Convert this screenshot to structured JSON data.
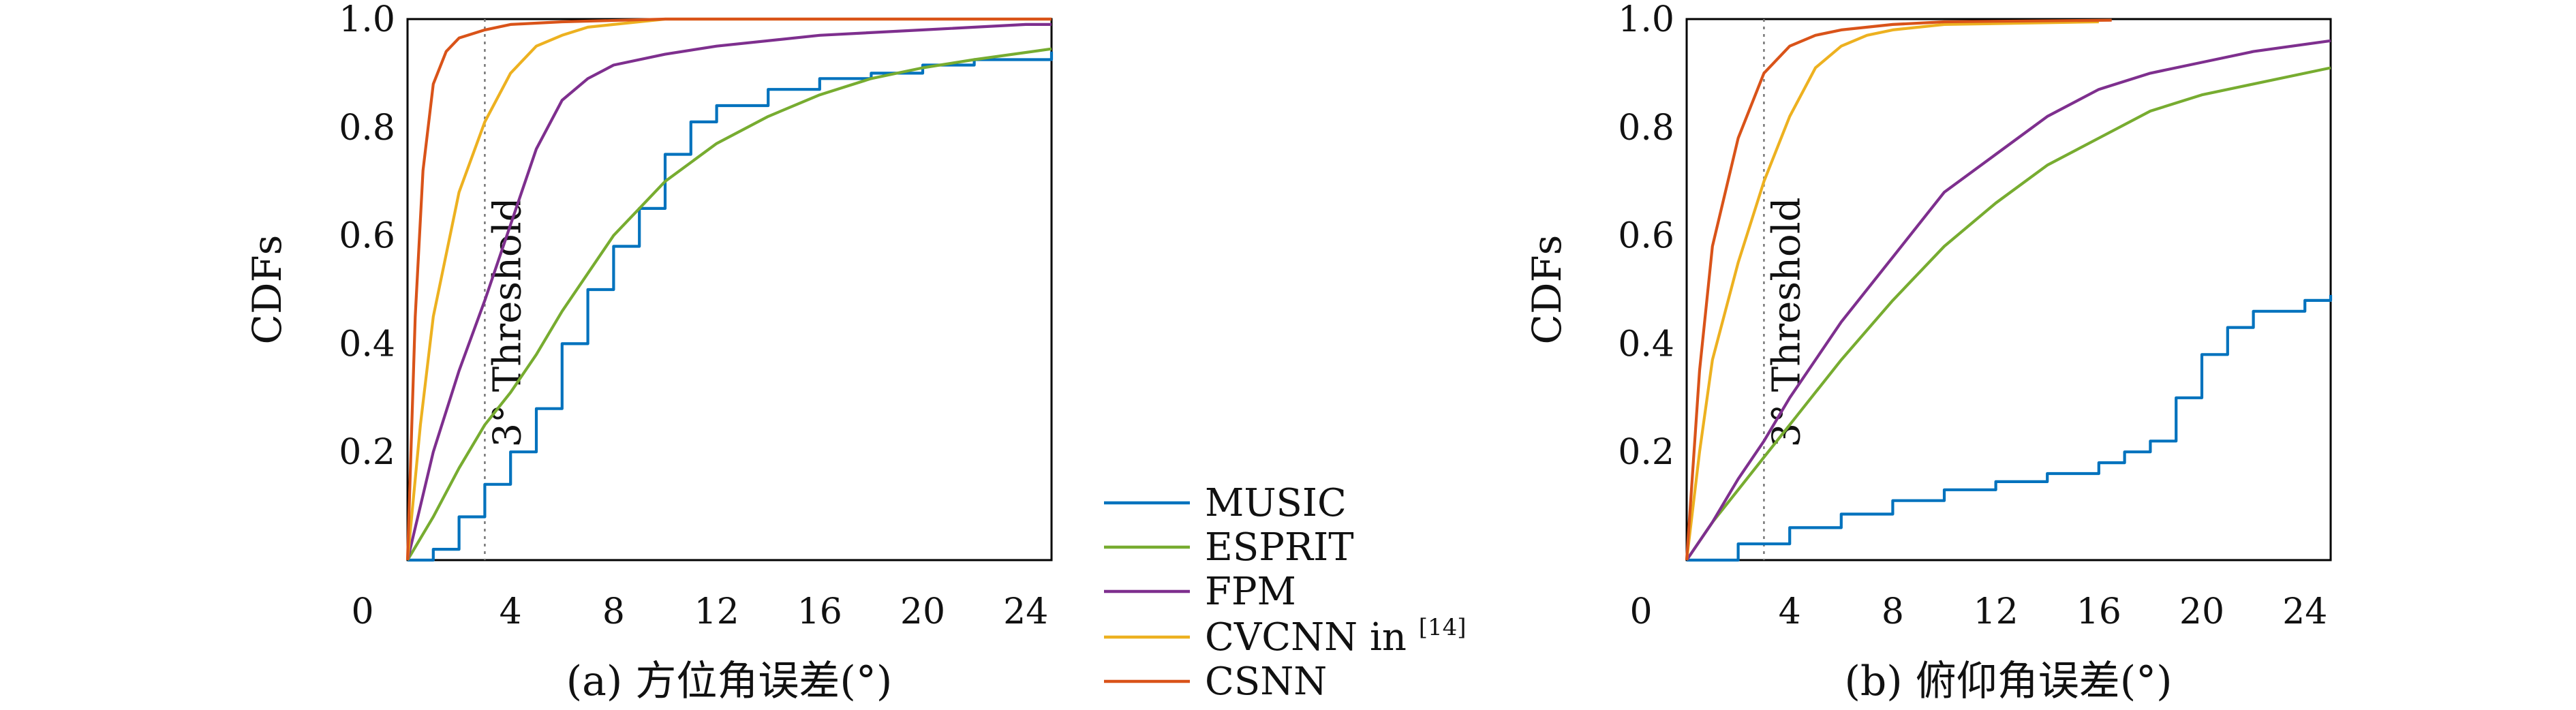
{
  "chart_data": [
    {
      "type": "line",
      "panel": "a",
      "title": "(a) 方位角误差(°)",
      "xlabel": "",
      "ylabel": "CDFs",
      "xlim": [
        0,
        25
      ],
      "ylim": [
        0,
        1
      ],
      "x_ticks": [
        "4",
        "8",
        "12",
        "16",
        "20",
        "24"
      ],
      "y_ticks": [
        "0.2",
        "0.4",
        "0.6",
        "0.8",
        "1.0"
      ],
      "origin_label": "0",
      "threshold": {
        "x": 3,
        "label": "3° Threshold"
      },
      "series": [
        {
          "name": "MUSIC",
          "color": "#0072BD",
          "stepped": true,
          "points": [
            [
              0,
              0
            ],
            [
              1,
              0.02
            ],
            [
              2,
              0.08
            ],
            [
              3,
              0.14
            ],
            [
              4,
              0.2
            ],
            [
              5,
              0.28
            ],
            [
              6,
              0.4
            ],
            [
              7,
              0.5
            ],
            [
              8,
              0.58
            ],
            [
              9,
              0.65
            ],
            [
              10,
              0.75
            ],
            [
              11,
              0.81
            ],
            [
              12,
              0.84
            ],
            [
              14,
              0.87
            ],
            [
              16,
              0.89
            ],
            [
              18,
              0.9
            ],
            [
              20,
              0.915
            ],
            [
              22,
              0.925
            ],
            [
              25,
              0.94
            ]
          ]
        },
        {
          "name": "ESPRIT",
          "color": "#77AC30",
          "stepped": false,
          "points": [
            [
              0,
              0
            ],
            [
              1,
              0.08
            ],
            [
              2,
              0.17
            ],
            [
              3,
              0.25
            ],
            [
              4,
              0.31
            ],
            [
              5,
              0.38
            ],
            [
              6,
              0.46
            ],
            [
              7,
              0.53
            ],
            [
              8,
              0.6
            ],
            [
              9,
              0.65
            ],
            [
              10,
              0.7
            ],
            [
              12,
              0.77
            ],
            [
              14,
              0.82
            ],
            [
              16,
              0.86
            ],
            [
              18,
              0.89
            ],
            [
              20,
              0.91
            ],
            [
              22,
              0.925
            ],
            [
              25,
              0.945
            ]
          ]
        },
        {
          "name": "FPM",
          "color": "#7E2F8E",
          "stepped": false,
          "points": [
            [
              0,
              0
            ],
            [
              1,
              0.2
            ],
            [
              2,
              0.35
            ],
            [
              3,
              0.48
            ],
            [
              4,
              0.62
            ],
            [
              5,
              0.76
            ],
            [
              6,
              0.85
            ],
            [
              7,
              0.89
            ],
            [
              8,
              0.915
            ],
            [
              10,
              0.935
            ],
            [
              12,
              0.95
            ],
            [
              16,
              0.97
            ],
            [
              20,
              0.98
            ],
            [
              24,
              0.99
            ],
            [
              25,
              0.99
            ]
          ]
        },
        {
          "name": "CVCNN in[14]",
          "color": "#EDB120",
          "stepped": false,
          "points": [
            [
              0,
              0
            ],
            [
              0.5,
              0.25
            ],
            [
              1,
              0.45
            ],
            [
              2,
              0.68
            ],
            [
              3,
              0.81
            ],
            [
              4,
              0.9
            ],
            [
              5,
              0.95
            ],
            [
              6,
              0.97
            ],
            [
              7,
              0.985
            ],
            [
              8,
              0.99
            ],
            [
              10,
              1.0
            ],
            [
              25,
              1.0
            ]
          ]
        },
        {
          "name": "CSNN",
          "color": "#D95319",
          "stepped": false,
          "points": [
            [
              0,
              0
            ],
            [
              0.3,
              0.45
            ],
            [
              0.6,
              0.72
            ],
            [
              1,
              0.88
            ],
            [
              1.5,
              0.94
            ],
            [
              2,
              0.965
            ],
            [
              3,
              0.98
            ],
            [
              4,
              0.99
            ],
            [
              6,
              0.995
            ],
            [
              10,
              1.0
            ],
            [
              25,
              1.0
            ]
          ]
        }
      ]
    },
    {
      "type": "line",
      "panel": "b",
      "title": "(b) 俯仰角误差(°)",
      "xlabel": "",
      "ylabel": "CDFs",
      "xlim": [
        0,
        25
      ],
      "ylim": [
        0,
        1
      ],
      "x_ticks": [
        "4",
        "8",
        "12",
        "16",
        "20",
        "24"
      ],
      "y_ticks": [
        "0.2",
        "0.4",
        "0.6",
        "0.8",
        "1.0"
      ],
      "origin_label": "0",
      "threshold": {
        "x": 3,
        "label": "3° Threshold"
      },
      "series": [
        {
          "name": "MUSIC",
          "color": "#0072BD",
          "stepped": true,
          "points": [
            [
              0,
              0
            ],
            [
              2,
              0.03
            ],
            [
              4,
              0.06
            ],
            [
              6,
              0.085
            ],
            [
              8,
              0.11
            ],
            [
              10,
              0.13
            ],
            [
              12,
              0.145
            ],
            [
              14,
              0.16
            ],
            [
              16,
              0.18
            ],
            [
              17,
              0.2
            ],
            [
              18,
              0.22
            ],
            [
              19,
              0.3
            ],
            [
              20,
              0.38
            ],
            [
              21,
              0.43
            ],
            [
              22,
              0.46
            ],
            [
              24,
              0.48
            ],
            [
              25,
              0.49
            ]
          ]
        },
        {
          "name": "ESPRIT",
          "color": "#77AC30",
          "stepped": false,
          "points": [
            [
              0,
              0
            ],
            [
              1,
              0.07
            ],
            [
              2,
              0.13
            ],
            [
              3,
              0.19
            ],
            [
              4,
              0.25
            ],
            [
              6,
              0.37
            ],
            [
              8,
              0.48
            ],
            [
              10,
              0.58
            ],
            [
              12,
              0.66
            ],
            [
              14,
              0.73
            ],
            [
              16,
              0.78
            ],
            [
              18,
              0.83
            ],
            [
              20,
              0.86
            ],
            [
              22,
              0.88
            ],
            [
              25,
              0.91
            ]
          ]
        },
        {
          "name": "FPM",
          "color": "#7E2F8E",
          "stepped": false,
          "points": [
            [
              0,
              0
            ],
            [
              1,
              0.07
            ],
            [
              2,
              0.15
            ],
            [
              3,
              0.22
            ],
            [
              4,
              0.3
            ],
            [
              6,
              0.44
            ],
            [
              8,
              0.56
            ],
            [
              10,
              0.68
            ],
            [
              12,
              0.75
            ],
            [
              14,
              0.82
            ],
            [
              16,
              0.87
            ],
            [
              18,
              0.9
            ],
            [
              20,
              0.92
            ],
            [
              22,
              0.94
            ],
            [
              25,
              0.96
            ]
          ]
        },
        {
          "name": "CVCNN in[14]",
          "color": "#EDB120",
          "stepped": false,
          "points": [
            [
              0,
              0
            ],
            [
              0.5,
              0.2
            ],
            [
              1,
              0.37
            ],
            [
              2,
              0.55
            ],
            [
              3,
              0.7
            ],
            [
              4,
              0.82
            ],
            [
              5,
              0.91
            ],
            [
              6,
              0.95
            ],
            [
              7,
              0.97
            ],
            [
              8,
              0.98
            ],
            [
              10,
              0.99
            ],
            [
              16,
              0.995
            ]
          ]
        },
        {
          "name": "CSNN",
          "color": "#D95319",
          "stepped": false,
          "points": [
            [
              0,
              0
            ],
            [
              0.5,
              0.35
            ],
            [
              1,
              0.58
            ],
            [
              2,
              0.78
            ],
            [
              3,
              0.9
            ],
            [
              4,
              0.95
            ],
            [
              5,
              0.97
            ],
            [
              6,
              0.98
            ],
            [
              8,
              0.99
            ],
            [
              10,
              0.995
            ],
            [
              16.5,
              0.998
            ]
          ]
        }
      ]
    }
  ],
  "legend": {
    "items": [
      {
        "label": "MUSIC",
        "color": "#0072BD"
      },
      {
        "label": "ESPRIT",
        "color": "#77AC30"
      },
      {
        "label": "FPM",
        "color": "#7E2F8E"
      },
      {
        "label": "CVCNN in",
        "sup": "[14]",
        "color": "#EDB120"
      },
      {
        "label": "CSNN",
        "color": "#D95319"
      }
    ]
  }
}
